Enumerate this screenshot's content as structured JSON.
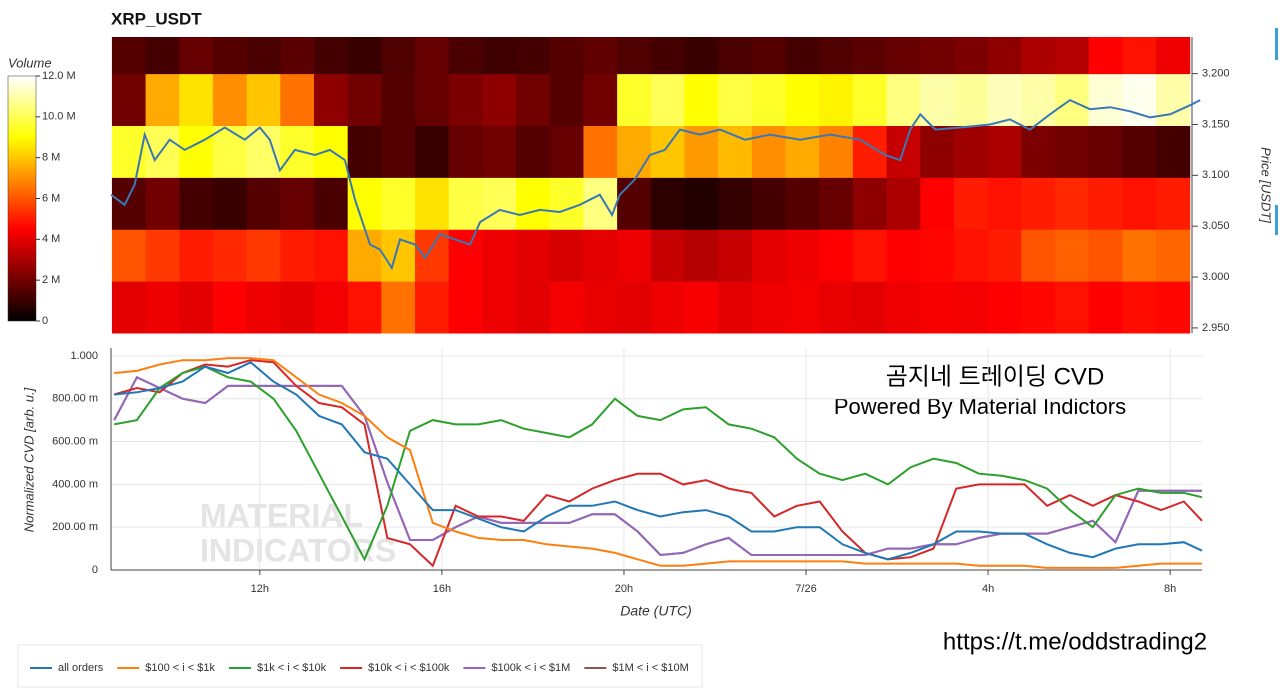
{
  "chart_data": [
    {
      "type": "heatmap",
      "title": "XRP_USDT",
      "colorbar_label": "Volume",
      "y_label": "Price [USDT]",
      "colormap": "hot",
      "xlim": [
        8.73,
        32.7
      ],
      "bins": [
        8.75,
        9.49,
        10.23,
        10.97,
        11.71,
        12.45,
        13.19,
        13.93,
        14.67,
        15.41,
        16.15,
        16.89,
        17.63,
        18.37,
        19.11,
        19.85,
        20.59,
        21.33,
        22.07,
        22.81,
        23.55,
        24.29,
        25.03,
        25.77,
        26.51,
        27.25,
        27.99,
        28.73,
        29.47,
        30.21,
        30.95,
        31.69,
        32.43
      ],
      "y_bins": [
        2.945,
        2.996,
        3.047,
        3.098,
        3.149,
        3.2,
        3.236
      ],
      "z": [
        [
          4.0,
          4.2,
          4.0,
          4.5,
          4.2,
          4.0,
          4.3,
          4.8,
          6.5,
          5.0,
          4.5,
          4.2,
          4.0,
          4.3,
          4.1,
          4.0,
          4.2,
          4.4,
          4.0,
          4.2,
          4.3,
          4.1,
          4.0,
          4.2,
          4.4,
          4.3,
          4.5,
          4.6,
          4.8,
          4.5,
          4.7,
          4.6
        ],
        [
          6.0,
          5.5,
          5.0,
          5.2,
          5.5,
          5.0,
          4.8,
          7.5,
          8.0,
          5.5,
          4.5,
          4.2,
          4.0,
          3.8,
          4.0,
          4.2,
          3.5,
          3.2,
          3.5,
          4.0,
          4.2,
          4.5,
          4.8,
          4.5,
          4.6,
          4.8,
          5.0,
          6.0,
          6.2,
          6.0,
          6.5,
          6.3
        ],
        [
          1.5,
          2.0,
          1.2,
          1.0,
          1.5,
          1.8,
          1.3,
          9.0,
          9.5,
          8.5,
          9.8,
          10.0,
          9.0,
          9.5,
          10.5,
          1.5,
          0.8,
          0.6,
          0.9,
          1.2,
          1.5,
          1.8,
          2.5,
          3.0,
          4.5,
          5.0,
          4.8,
          5.0,
          5.2,
          5.0,
          4.8,
          5.0
        ],
        [
          9.5,
          10.0,
          9.0,
          9.8,
          10.2,
          9.5,
          9.0,
          1.2,
          1.5,
          1.0,
          1.8,
          2.0,
          1.5,
          1.8,
          6.5,
          7.5,
          8.0,
          7.2,
          7.8,
          7.0,
          7.5,
          6.8,
          5.0,
          3.5,
          2.5,
          2.8,
          3.0,
          2.2,
          2.0,
          1.8,
          1.5,
          1.2
        ],
        [
          2.0,
          7.5,
          8.5,
          7.0,
          8.0,
          6.5,
          2.5,
          2.0,
          1.5,
          1.8,
          2.2,
          2.5,
          2.0,
          1.5,
          2.0,
          9.5,
          10.0,
          9.0,
          9.8,
          9.5,
          9.0,
          8.8,
          9.5,
          10.5,
          11.0,
          10.8,
          11.2,
          11.0,
          10.5,
          11.5,
          11.8,
          11.0
        ],
        [
          1.5,
          1.2,
          1.8,
          1.5,
          1.3,
          1.6,
          1.2,
          1.0,
          1.4,
          1.8,
          1.3,
          1.1,
          1.2,
          1.5,
          1.7,
          1.4,
          1.2,
          1.0,
          1.3,
          1.5,
          1.2,
          1.4,
          1.6,
          1.8,
          2.0,
          2.2,
          2.5,
          3.0,
          3.2,
          4.5,
          4.8,
          4.2
        ]
      ],
      "zlim": [
        0,
        12
      ],
      "zticks": [
        0,
        {
          "value": 2,
          "label": "2 M"
        },
        {
          "value": 4,
          "label": "4 M"
        },
        {
          "value": 6,
          "label": "6 M"
        },
        {
          "value": 8,
          "label": "8 M"
        },
        {
          "value": 10,
          "label": "10.0 M"
        },
        {
          "value": 12,
          "label": "12.0 M"
        }
      ],
      "ylim": [
        2.945,
        3.236
      ],
      "yticks": [
        {
          "value": 2.95,
          "label": "2.950"
        },
        {
          "value": 3.0,
          "label": "3.000"
        },
        {
          "value": 3.05,
          "label": "3.050"
        },
        {
          "value": 3.1,
          "label": "3.100"
        },
        {
          "value": 3.15,
          "label": "3.150"
        },
        {
          "value": 3.2,
          "label": "3.200"
        }
      ],
      "line": {
        "color": "#3a78b5",
        "x": [
          8.73,
          9.03,
          9.25,
          9.47,
          9.69,
          10.02,
          10.35,
          10.79,
          11.23,
          11.67,
          12.0,
          12.22,
          12.44,
          12.77,
          13.21,
          13.54,
          13.87,
          14.09,
          14.42,
          14.64,
          14.9,
          15.08,
          15.41,
          15.63,
          15.96,
          16.29,
          16.62,
          16.84,
          17.27,
          17.71,
          18.15,
          18.59,
          19.03,
          19.47,
          19.74,
          19.91,
          20.24,
          20.57,
          20.9,
          21.23,
          21.67,
          22.11,
          22.66,
          23.21,
          23.87,
          24.53,
          25.19,
          25.74,
          26.07,
          26.29,
          26.51,
          26.84,
          27.38,
          28.04,
          28.48,
          28.92,
          29.36,
          29.8,
          30.24,
          30.68,
          31.12,
          31.56,
          32.0,
          32.44,
          32.66
        ],
        "values": [
          3.081,
          3.071,
          3.091,
          3.14,
          3.115,
          3.135,
          3.125,
          3.135,
          3.147,
          3.135,
          3.147,
          3.135,
          3.105,
          3.125,
          3.12,
          3.125,
          3.115,
          3.076,
          3.032,
          3.027,
          3.009,
          3.037,
          3.032,
          3.019,
          3.042,
          3.037,
          3.032,
          3.054,
          3.066,
          3.061,
          3.066,
          3.064,
          3.071,
          3.081,
          3.061,
          3.081,
          3.096,
          3.12,
          3.125,
          3.145,
          3.14,
          3.145,
          3.135,
          3.14,
          3.135,
          3.14,
          3.135,
          3.12,
          3.115,
          3.145,
          3.16,
          3.145,
          3.147,
          3.15,
          3.155,
          3.145,
          3.16,
          3.174,
          3.165,
          3.167,
          3.163,
          3.157,
          3.16,
          3.169,
          3.174
        ]
      }
    },
    {
      "type": "line",
      "y_label": "Normalized CVD [arb. u.]",
      "x_label": "Date (UTC)",
      "grid": true,
      "legend": "bottom-left",
      "annotations": [
        "곰지네 트레이딩 CVD",
        "Powered By Material Indictors"
      ],
      "xlim": [
        8.73,
        32.7
      ],
      "xticks": [
        {
          "value": 12,
          "label": "12h"
        },
        {
          "value": 16,
          "label": "16h"
        },
        {
          "value": 20,
          "label": "20h"
        },
        {
          "value": 24,
          "label": "7/26"
        },
        {
          "value": 28,
          "label": "4h"
        },
        {
          "value": 32,
          "label": "8h"
        }
      ],
      "ylim": [
        0,
        1.037
      ],
      "yticks": [
        0,
        {
          "value": 0.2,
          "label": "200.00 m"
        },
        {
          "value": 0.4,
          "label": "400.00 m"
        },
        {
          "value": 0.6,
          "label": "600.00 m"
        },
        {
          "value": 0.8,
          "label": "800.00 m"
        },
        {
          "value": 1,
          "label": "1.000"
        }
      ],
      "x": [
        8.8,
        9.3,
        9.8,
        10.3,
        10.8,
        11.3,
        11.8,
        12.3,
        12.8,
        13.3,
        13.8,
        14.3,
        14.8,
        15.3,
        15.8,
        16.3,
        16.8,
        17.3,
        17.8,
        18.3,
        18.8,
        19.3,
        19.8,
        20.3,
        20.8,
        21.3,
        21.8,
        22.3,
        22.8,
        23.3,
        23.8,
        24.3,
        24.8,
        25.3,
        25.8,
        26.3,
        26.8,
        27.3,
        27.8,
        28.3,
        28.8,
        29.3,
        29.8,
        30.3,
        30.8,
        31.3,
        31.8,
        32.3,
        32.7
      ],
      "series": [
        {
          "name": "all orders",
          "color": "#1f77b4",
          "values": [
            0.82,
            0.83,
            0.85,
            0.88,
            0.95,
            0.92,
            0.97,
            0.88,
            0.82,
            0.72,
            0.68,
            0.55,
            0.52,
            0.4,
            0.28,
            0.28,
            0.24,
            0.2,
            0.18,
            0.25,
            0.3,
            0.3,
            0.32,
            0.28,
            0.25,
            0.27,
            0.28,
            0.25,
            0.18,
            0.18,
            0.2,
            0.2,
            0.12,
            0.08,
            0.05,
            0.08,
            0.12,
            0.18,
            0.18,
            0.17,
            0.17,
            0.12,
            0.08,
            0.06,
            0.1,
            0.12,
            0.12,
            0.13,
            0.09
          ]
        },
        {
          "name": "$100 < i < $1k",
          "color": "#ff7f0e",
          "values": [
            0.92,
            0.93,
            0.96,
            0.98,
            0.98,
            0.99,
            0.99,
            0.98,
            0.9,
            0.82,
            0.78,
            0.72,
            0.62,
            0.56,
            0.22,
            0.18,
            0.15,
            0.14,
            0.14,
            0.12,
            0.11,
            0.1,
            0.08,
            0.05,
            0.02,
            0.02,
            0.03,
            0.04,
            0.04,
            0.04,
            0.04,
            0.04,
            0.04,
            0.03,
            0.03,
            0.03,
            0.03,
            0.03,
            0.02,
            0.02,
            0.02,
            0.01,
            0.01,
            0.01,
            0.01,
            0.02,
            0.03,
            0.03,
            0.03
          ]
        },
        {
          "name": "$1k < i < $10k",
          "color": "#2ca02c",
          "values": [
            0.68,
            0.7,
            0.85,
            0.92,
            0.95,
            0.9,
            0.88,
            0.8,
            0.65,
            0.45,
            0.25,
            0.05,
            0.3,
            0.65,
            0.7,
            0.68,
            0.68,
            0.7,
            0.66,
            0.64,
            0.62,
            0.68,
            0.8,
            0.72,
            0.7,
            0.75,
            0.76,
            0.68,
            0.66,
            0.62,
            0.52,
            0.45,
            0.42,
            0.45,
            0.4,
            0.48,
            0.52,
            0.5,
            0.45,
            0.44,
            0.42,
            0.38,
            0.28,
            0.2,
            0.35,
            0.38,
            0.36,
            0.36,
            0.34
          ]
        },
        {
          "name": "$10k < i < $100k",
          "color": "#d62728",
          "values": [
            0.82,
            0.85,
            0.83,
            0.92,
            0.96,
            0.95,
            0.98,
            0.97,
            0.86,
            0.78,
            0.76,
            0.68,
            0.15,
            0.12,
            0.02,
            0.3,
            0.25,
            0.25,
            0.23,
            0.35,
            0.32,
            0.38,
            0.42,
            0.45,
            0.45,
            0.4,
            0.42,
            0.38,
            0.36,
            0.25,
            0.3,
            0.32,
            0.18,
            0.08,
            0.05,
            0.06,
            0.1,
            0.38,
            0.4,
            0.4,
            0.4,
            0.3,
            0.35,
            0.3,
            0.35,
            0.32,
            0.28,
            0.32,
            0.23
          ]
        },
        {
          "name": "$100k < i < $1M",
          "color": "#9467bd",
          "values": [
            0.7,
            0.9,
            0.85,
            0.8,
            0.78,
            0.86,
            0.86,
            0.86,
            0.86,
            0.86,
            0.86,
            0.72,
            0.41,
            0.14,
            0.14,
            0.2,
            0.25,
            0.22,
            0.22,
            0.22,
            0.22,
            0.26,
            0.26,
            0.18,
            0.07,
            0.08,
            0.12,
            0.15,
            0.07,
            0.07,
            0.07,
            0.07,
            0.07,
            0.07,
            0.1,
            0.1,
            0.12,
            0.12,
            0.15,
            0.17,
            0.17,
            0.17,
            0.2,
            0.23,
            0.13,
            0.37,
            0.37,
            0.37,
            0.37
          ]
        },
        {
          "name": "$1M < i < $10M",
          "color": "#8c564b",
          "values": [
            0.7,
            0.9,
            0.85,
            0.8,
            0.78,
            0.86,
            0.86,
            0.86,
            0.86,
            0.86,
            0.86,
            0.72,
            0.41,
            0.14,
            0.14,
            0.2,
            0.25,
            0.22,
            0.22,
            0.22,
            0.22,
            0.26,
            0.26,
            0.18,
            0.07,
            0.08,
            0.12,
            0.15,
            0.07,
            0.07,
            0.07,
            0.07,
            0.07,
            0.07,
            0.1,
            0.1,
            0.12,
            0.12,
            0.15,
            0.17,
            0.17,
            0.17,
            0.2,
            0.23,
            0.13,
            0.37,
            0.37,
            0.37,
            0.37
          ]
        }
      ]
    }
  ],
  "watermark": [
    "MATERIAL",
    "INDICATORS"
  ],
  "footer_link": "https://t.me/oddstrading2"
}
